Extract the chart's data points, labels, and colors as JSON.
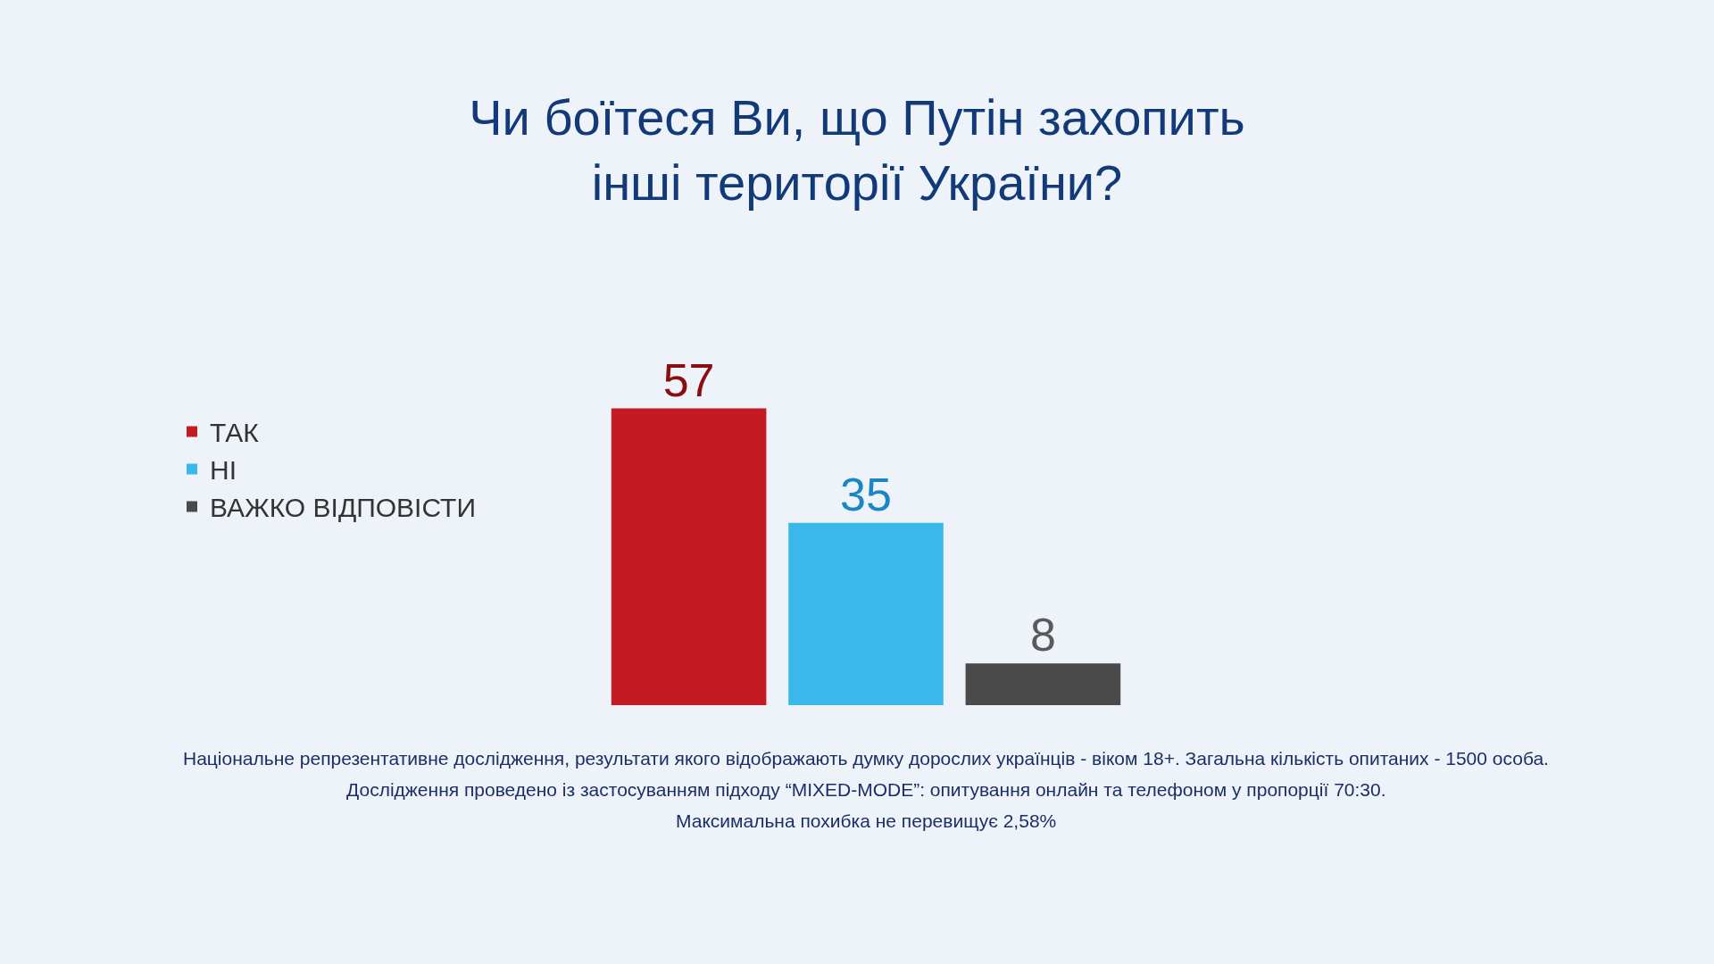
{
  "chart_data": {
    "type": "bar",
    "title": "Чи боїтеся Ви, що Путін захопить\nінші території України?",
    "categories": [
      null
    ],
    "series": [
      {
        "name": "ТАК",
        "color": "#c41a22",
        "values": [
          57
        ]
      },
      {
        "name": "НІ",
        "color": "#3ab8ec",
        "values": [
          35
        ]
      },
      {
        "name": "ВАЖКО ВІДПОВІСТИ",
        "color": "#4a4a4a",
        "values": [
          8
        ]
      }
    ],
    "data_labels": true,
    "legend": "left",
    "annotations": [
      "Національне репрезентативне дослідження, результати якого відображають думку дорослих українців - віком 18+. Загальна кількість опитаних - 1500 особа.",
      "Дослідження проведено із застосуванням підходу “MIXED-MODE”: опитування онлайн та телефоном у пропорції 70:30.",
      "Максимальна похибка не перевищує 2,58%"
    ]
  }
}
